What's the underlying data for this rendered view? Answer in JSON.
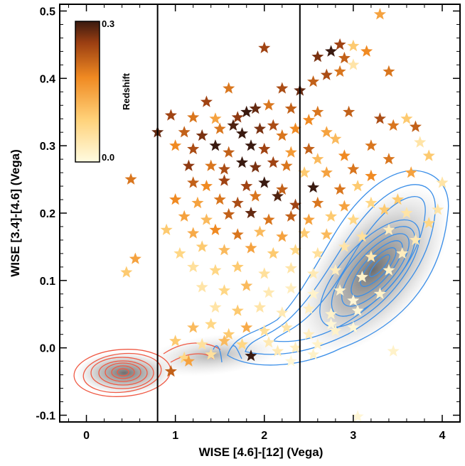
{
  "chart_data": {
    "type": "scatter",
    "xlabel": "WISE [4.6]-[12] (Vega)",
    "ylabel": "WISE [3.4]-[4.6] (Vega)",
    "xlim": [
      -0.3,
      4.2
    ],
    "ylim": [
      -0.11,
      0.51
    ],
    "x_ticks": [
      "0",
      "1",
      "2",
      "3",
      "4"
    ],
    "y_ticks": [
      "-0.1",
      "0.0",
      "0.1",
      "0.2",
      "0.3",
      "0.4",
      "0.5"
    ],
    "vertical_lines": [
      0.8,
      2.4
    ],
    "colorbar": {
      "label": "Redshift",
      "min_label": "0.0",
      "max_label": "0.3",
      "range": [
        0.0,
        0.3
      ],
      "placement": "top-left"
    },
    "density_regions": [
      {
        "name": "",
        "color": "#e8503a",
        "center": [
          0.45,
          -0.04
        ]
      },
      {
        "name": "",
        "color": "#3a8ee8",
        "center": [
          3.2,
          0.11
        ]
      }
    ],
    "stars": [
      [
        3.3,
        0.495,
        0.15
      ],
      [
        2.85,
        0.45,
        0.25
      ],
      [
        2.75,
        0.44,
        0.3
      ],
      [
        3.0,
        0.448,
        0.1
      ],
      [
        3.15,
        0.44,
        0.18
      ],
      [
        2.6,
        0.432,
        0.27
      ],
      [
        2.9,
        0.43,
        0.22
      ],
      [
        2.0,
        0.445,
        0.25
      ],
      [
        3.0,
        0.42,
        0.05
      ],
      [
        2.85,
        0.41,
        0.2
      ],
      [
        3.4,
        0.41,
        0.2
      ],
      [
        2.7,
        0.405,
        0.24
      ],
      [
        2.55,
        0.395,
        0.22
      ],
      [
        2.4,
        0.382,
        0.28
      ],
      [
        2.2,
        0.385,
        0.24
      ],
      [
        1.6,
        0.385,
        0.2
      ],
      [
        2.05,
        0.36,
        0.2
      ],
      [
        1.35,
        0.365,
        0.25
      ],
      [
        0.95,
        0.345,
        0.25
      ],
      [
        1.2,
        0.342,
        0.2
      ],
      [
        1.45,
        0.34,
        0.15
      ],
      [
        1.9,
        0.355,
        0.28
      ],
      [
        1.8,
        0.35,
        0.3
      ],
      [
        1.7,
        0.342,
        0.26
      ],
      [
        2.3,
        0.355,
        0.22
      ],
      [
        2.6,
        0.35,
        0.2
      ],
      [
        2.5,
        0.338,
        0.18
      ],
      [
        2.95,
        0.35,
        0.22
      ],
      [
        3.3,
        0.34,
        0.24
      ],
      [
        3.6,
        0.34,
        0.1
      ],
      [
        0.8,
        0.32,
        0.28
      ],
      [
        1.1,
        0.32,
        0.22
      ],
      [
        1.3,
        0.315,
        0.27
      ],
      [
        1.5,
        0.325,
        0.2
      ],
      [
        1.65,
        0.33,
        0.29
      ],
      [
        1.75,
        0.318,
        0.3
      ],
      [
        1.95,
        0.325,
        0.27
      ],
      [
        2.1,
        0.33,
        0.24
      ],
      [
        2.2,
        0.315,
        0.2
      ],
      [
        2.35,
        0.325,
        0.18
      ],
      [
        2.7,
        0.32,
        0.15
      ],
      [
        2.8,
        0.31,
        0.12
      ],
      [
        3.2,
        0.3,
        0.2
      ],
      [
        3.45,
        0.33,
        0.2
      ],
      [
        3.7,
        0.328,
        0.22
      ],
      [
        3.75,
        0.305,
        0.05
      ],
      [
        3.4,
        0.28,
        0.2
      ],
      [
        3.65,
        0.26,
        0.15
      ],
      [
        3.85,
        0.285,
        0.1
      ],
      [
        4.0,
        0.245,
        0.05
      ],
      [
        1.0,
        0.3,
        0.18
      ],
      [
        1.2,
        0.295,
        0.24
      ],
      [
        1.45,
        0.3,
        0.3
      ],
      [
        1.6,
        0.29,
        0.22
      ],
      [
        1.85,
        0.3,
        0.3
      ],
      [
        2.0,
        0.295,
        0.25
      ],
      [
        2.3,
        0.29,
        0.16
      ],
      [
        2.5,
        0.295,
        0.22
      ],
      [
        2.6,
        0.28,
        0.12
      ],
      [
        2.9,
        0.285,
        0.18
      ],
      [
        1.15,
        0.27,
        0.26
      ],
      [
        1.4,
        0.27,
        0.2
      ],
      [
        1.55,
        0.265,
        0.24
      ],
      [
        1.75,
        0.275,
        0.3
      ],
      [
        1.9,
        0.268,
        0.27
      ],
      [
        2.1,
        0.275,
        0.25
      ],
      [
        2.25,
        0.27,
        0.2
      ],
      [
        2.45,
        0.26,
        0.1
      ],
      [
        2.7,
        0.26,
        0.15
      ],
      [
        3.0,
        0.265,
        0.2
      ],
      [
        3.2,
        0.255,
        0.18
      ],
      [
        0.5,
        0.25,
        0.2
      ],
      [
        1.2,
        0.245,
        0.22
      ],
      [
        1.35,
        0.24,
        0.18
      ],
      [
        1.55,
        0.248,
        0.25
      ],
      [
        1.8,
        0.24,
        0.25
      ],
      [
        2.0,
        0.245,
        0.3
      ],
      [
        2.2,
        0.235,
        0.22
      ],
      [
        2.55,
        0.238,
        0.3
      ],
      [
        2.85,
        0.235,
        0.2
      ],
      [
        3.05,
        0.24,
        0.1
      ],
      [
        1.0,
        0.22,
        0.18
      ],
      [
        1.25,
        0.215,
        0.15
      ],
      [
        1.5,
        0.22,
        0.2
      ],
      [
        1.7,
        0.215,
        0.24
      ],
      [
        1.9,
        0.225,
        0.2
      ],
      [
        2.15,
        0.225,
        0.29
      ],
      [
        2.35,
        0.212,
        0.25
      ],
      [
        2.6,
        0.215,
        0.2
      ],
      [
        2.9,
        0.21,
        0.15
      ],
      [
        3.2,
        0.215,
        0.08
      ],
      [
        3.5,
        0.22,
        0.1
      ],
      [
        1.1,
        0.195,
        0.15
      ],
      [
        1.35,
        0.19,
        0.12
      ],
      [
        1.6,
        0.198,
        0.22
      ],
      [
        1.85,
        0.2,
        0.28
      ],
      [
        2.05,
        0.19,
        0.2
      ],
      [
        2.3,
        0.195,
        0.22
      ],
      [
        2.5,
        0.19,
        0.15
      ],
      [
        2.75,
        0.195,
        0.1
      ],
      [
        3.0,
        0.19,
        0.08
      ],
      [
        3.35,
        0.205,
        0.1
      ],
      [
        3.6,
        0.2,
        0.05
      ],
      [
        3.95,
        0.205,
        0.05
      ],
      [
        3.85,
        0.185,
        0.08
      ],
      [
        0.9,
        0.175,
        0.1
      ],
      [
        1.2,
        0.17,
        0.14
      ],
      [
        1.45,
        0.175,
        0.18
      ],
      [
        1.7,
        0.168,
        0.2
      ],
      [
        1.95,
        0.172,
        0.12
      ],
      [
        2.2,
        0.165,
        0.15
      ],
      [
        2.45,
        0.17,
        0.1
      ],
      [
        2.7,
        0.168,
        0.12
      ],
      [
        3.1,
        0.165,
        0.06
      ],
      [
        3.4,
        0.175,
        0.03
      ],
      [
        3.7,
        0.16,
        0.04
      ],
      [
        0.55,
        0.132,
        0.15
      ],
      [
        1.05,
        0.14,
        0.08
      ],
      [
        1.3,
        0.15,
        0.1
      ],
      [
        1.55,
        0.145,
        0.12
      ],
      [
        1.85,
        0.148,
        0.15
      ],
      [
        2.1,
        0.14,
        0.1
      ],
      [
        2.35,
        0.145,
        0.08
      ],
      [
        2.6,
        0.14,
        0.06
      ],
      [
        2.9,
        0.15,
        0.05
      ],
      [
        3.2,
        0.135,
        0.04
      ],
      [
        3.55,
        0.14,
        0.03
      ],
      [
        0.45,
        0.112,
        0.1
      ],
      [
        1.2,
        0.12,
        0.06
      ],
      [
        1.45,
        0.115,
        0.08
      ],
      [
        1.7,
        0.12,
        0.1
      ],
      [
        2.0,
        0.11,
        0.06
      ],
      [
        2.3,
        0.118,
        0.05
      ],
      [
        2.55,
        0.11,
        0.04
      ],
      [
        2.8,
        0.115,
        0.03
      ],
      [
        3.1,
        0.105,
        0.02
      ],
      [
        3.4,
        0.115,
        0.02
      ],
      [
        1.3,
        0.09,
        0.05
      ],
      [
        1.55,
        0.085,
        0.08
      ],
      [
        1.8,
        0.092,
        0.12
      ],
      [
        2.05,
        0.082,
        0.04
      ],
      [
        2.3,
        0.088,
        0.03
      ],
      [
        2.55,
        0.08,
        0.02
      ],
      [
        2.85,
        0.085,
        0.02
      ],
      [
        3.0,
        0.07,
        0.01
      ],
      [
        3.3,
        0.08,
        0.02
      ],
      [
        1.45,
        0.06,
        0.05
      ],
      [
        1.7,
        0.055,
        0.1
      ],
      [
        1.95,
        0.06,
        0.05
      ],
      [
        2.2,
        0.052,
        0.04
      ],
      [
        2.5,
        0.058,
        0.03
      ],
      [
        2.75,
        0.05,
        0.02
      ],
      [
        3.05,
        0.055,
        0.01
      ],
      [
        1.2,
        0.03,
        0.12
      ],
      [
        1.4,
        0.035,
        0.08
      ],
      [
        1.6,
        0.02,
        0.1
      ],
      [
        1.8,
        0.03,
        0.14
      ],
      [
        2.0,
        0.025,
        0.06
      ],
      [
        2.25,
        0.03,
        0.05
      ],
      [
        2.5,
        0.02,
        0.03
      ],
      [
        2.8,
        0.025,
        0.02
      ],
      [
        3.0,
        0.03,
        0.01
      ],
      [
        1.0,
        0.01,
        0.1
      ],
      [
        1.3,
        0.005,
        0.06
      ],
      [
        1.55,
        0.01,
        0.12
      ],
      [
        1.75,
        0.005,
        0.08
      ],
      [
        2.05,
        0.008,
        0.04
      ],
      [
        2.35,
        0.0,
        0.03
      ],
      [
        2.6,
        0.005,
        0.02
      ],
      [
        1.1,
        -0.015,
        0.08
      ],
      [
        1.4,
        -0.01,
        0.06
      ],
      [
        1.85,
        -0.012,
        0.3
      ],
      [
        2.55,
        -0.01,
        0.02
      ],
      [
        2.15,
        -0.005,
        0.04
      ],
      [
        0.95,
        -0.035,
        0.22
      ],
      [
        1.15,
        -0.02,
        0.15
      ],
      [
        2.3,
        -0.02,
        0.01
      ],
      [
        3.45,
        -0.005,
        0.02
      ],
      [
        3.05,
        -0.102,
        0.01
      ],
      [
        2.75,
        0.035,
        0.01
      ]
    ]
  }
}
